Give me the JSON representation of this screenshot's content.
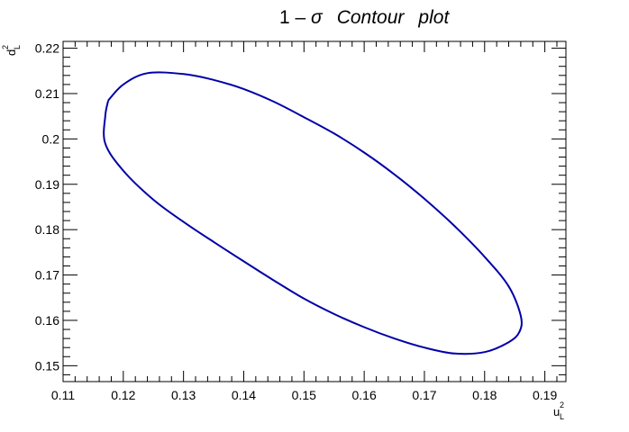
{
  "chart_data": {
    "type": "line",
    "title": {
      "prefix": "1 – ",
      "sigma": "σ",
      "text": "Contour",
      "suffix": "plot"
    },
    "xlabel": {
      "base": "u",
      "sup": "2",
      "sub": "L"
    },
    "ylabel": {
      "base": "d",
      "sup": "2",
      "sub": "L"
    },
    "xlim": [
      0.11,
      0.1935
    ],
    "ylim": [
      0.1465,
      0.2215
    ],
    "x_ticks": [
      0.11,
      0.12,
      0.13,
      0.14,
      0.15,
      0.16,
      0.17,
      0.18,
      0.19
    ],
    "x_tick_labels": [
      "0.11",
      "0.12",
      "0.13",
      "0.14",
      "0.15",
      "0.16",
      "0.17",
      "0.18",
      "0.19"
    ],
    "y_ticks": [
      0.15,
      0.16,
      0.17,
      0.18,
      0.19,
      0.2,
      0.21,
      0.22
    ],
    "y_tick_labels": [
      "0.15",
      "0.16",
      "0.17",
      "0.18",
      "0.19",
      "0.2",
      "0.21",
      "0.22"
    ],
    "minor_ticks_per_major": 5,
    "grid": false,
    "series": [
      {
        "color": "#0000a8",
        "x": [
          0.1175,
          0.12,
          0.124,
          0.13,
          0.135,
          0.14,
          0.145,
          0.15,
          0.155,
          0.16,
          0.165,
          0.17,
          0.175,
          0.18,
          0.184,
          0.186,
          0.1858,
          0.184,
          0.18,
          0.175,
          0.17,
          0.165,
          0.16,
          0.155,
          0.15,
          0.145,
          0.14,
          0.135,
          0.13,
          0.125,
          0.12,
          0.117,
          0.117,
          0.1175
        ],
        "y": [
          0.2085,
          0.212,
          0.2145,
          0.2143,
          0.213,
          0.211,
          0.2082,
          0.2048,
          0.2012,
          0.197,
          0.1922,
          0.1868,
          0.1808,
          0.174,
          0.1675,
          0.161,
          0.1575,
          0.1552,
          0.153,
          0.1527,
          0.154,
          0.156,
          0.1585,
          0.1614,
          0.1648,
          0.1688,
          0.173,
          0.1773,
          0.1817,
          0.1866,
          0.193,
          0.199,
          0.205,
          0.2085
        ]
      }
    ]
  }
}
